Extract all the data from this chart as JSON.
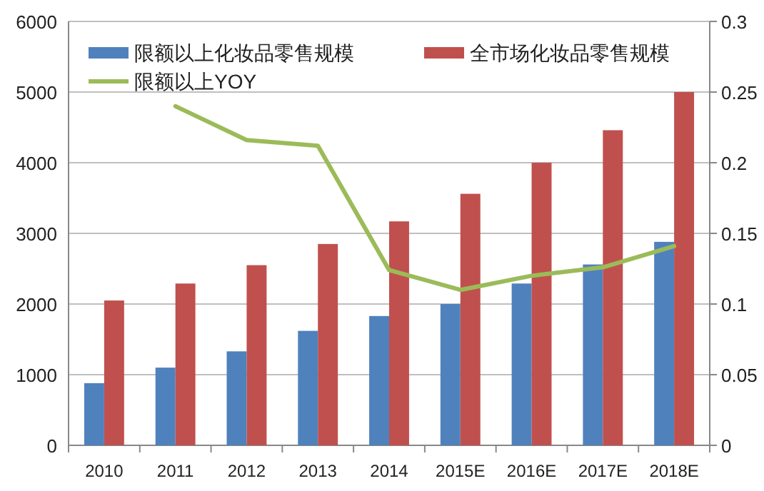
{
  "chart_data": {
    "type": "bar",
    "categories": [
      "2010",
      "2011",
      "2012",
      "2013",
      "2014",
      "2015E",
      "2016E",
      "2017E",
      "2018E"
    ],
    "series": [
      {
        "name": "限额以上化妆品零售规模",
        "color": "#4f81bd",
        "values": [
          880,
          1100,
          1330,
          1620,
          1830,
          2000,
          2290,
          2560,
          2880
        ]
      },
      {
        "name": "全市场化妆品零售规模",
        "color": "#c0504d",
        "values": [
          2050,
          2290,
          2550,
          2850,
          3170,
          3560,
          4000,
          4460,
          5000
        ]
      },
      {
        "name": "限额以上YOY",
        "type": "line",
        "axis": "y2",
        "color": "#9bbb59",
        "values": [
          null,
          0.24,
          0.216,
          0.212,
          0.124,
          0.11,
          0.12,
          0.126,
          0.141
        ]
      }
    ],
    "ylim": [
      0,
      6000
    ],
    "yticks": [
      0,
      1000,
      2000,
      3000,
      4000,
      5000,
      6000
    ],
    "y2lim": [
      0,
      0.3
    ],
    "y2ticks": [
      0,
      0.05,
      0.1,
      0.15,
      0.2,
      0.25,
      0.3
    ],
    "grid": "y",
    "legend": "top"
  }
}
